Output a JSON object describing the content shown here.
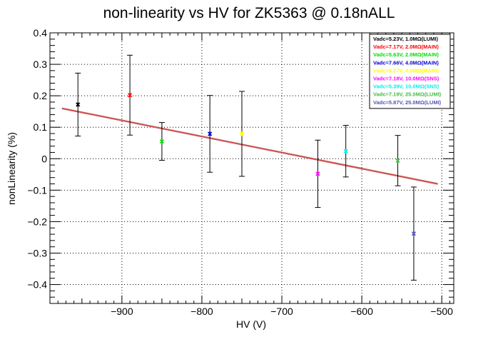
{
  "chart_data": {
    "type": "scatter",
    "title": "non-linearity vs HV for ZK5363 @ 0.18nALL",
    "xlabel": "HV (V)",
    "ylabel": "nonLinearity (%)",
    "xlim": [
      -990,
      -485
    ],
    "ylim": [
      -0.46,
      0.4
    ],
    "x_ticks": [
      -900,
      -800,
      -700,
      -600,
      -500
    ],
    "x_tick_labels": [
      "−900",
      "−800",
      "−700",
      "−600",
      "−500"
    ],
    "y_ticks": [
      0.4,
      0.3,
      0.2,
      0.1,
      0,
      -0.1,
      -0.2,
      -0.3,
      -0.4
    ],
    "y_tick_labels": [
      "0.4",
      "0.3",
      "0.2",
      "0.1",
      "0",
      "−0.1",
      "−0.2",
      "−0.3",
      "−0.4"
    ],
    "grid": true,
    "legend_position": "top-right",
    "series": [
      {
        "name": "Vadc=5.23V, 1.0MΩ(LUMI)",
        "color": "#000000",
        "x": -955,
        "y": 0.172,
        "err": 0.1
      },
      {
        "name": "Vadc=7.17V, 2.0MΩ(MAIN)",
        "color": "#ff0000",
        "x": -890,
        "y": 0.202,
        "err": 0.127
      },
      {
        "name": "Vadc=5.63V, 2.0MΩ(MAIN)",
        "color": "#00dd00",
        "x": -850,
        "y": 0.055,
        "err": 0.06
      },
      {
        "name": "Vadc=7.66V, 4.0MΩ(MAIN)",
        "color": "#0000cc",
        "x": -790,
        "y": 0.079,
        "err": 0.122
      },
      {
        "name": "Vadc=6.07V, 4.0MΩ(MAIN)",
        "color": "#ffff00",
        "x": -750,
        "y": 0.079,
        "err": 0.135
      },
      {
        "name": "Vadc=7.18V, 10.0MΩ(SNS)",
        "color": "#ff00ff",
        "x": -655,
        "y": -0.048,
        "err": 0.107
      },
      {
        "name": "Vadc=5.39V, 10.0MΩ(SNS)",
        "color": "#00eeee",
        "x": -620,
        "y": 0.024,
        "err": 0.082
      },
      {
        "name": "Vadc=7.19V, 25.0MΩ(LUMI)",
        "color": "#44bb44",
        "x": -555,
        "y": -0.006,
        "err": 0.08
      },
      {
        "name": "Vadc=5.87V, 25.0MΩ(LUMI)",
        "color": "#5555bb",
        "x": -535,
        "y": -0.238,
        "err": 0.148
      }
    ],
    "fit_line": {
      "color": "#cc5555",
      "x": [
        -975,
        -505
      ],
      "y": [
        0.16,
        -0.08
      ]
    }
  }
}
